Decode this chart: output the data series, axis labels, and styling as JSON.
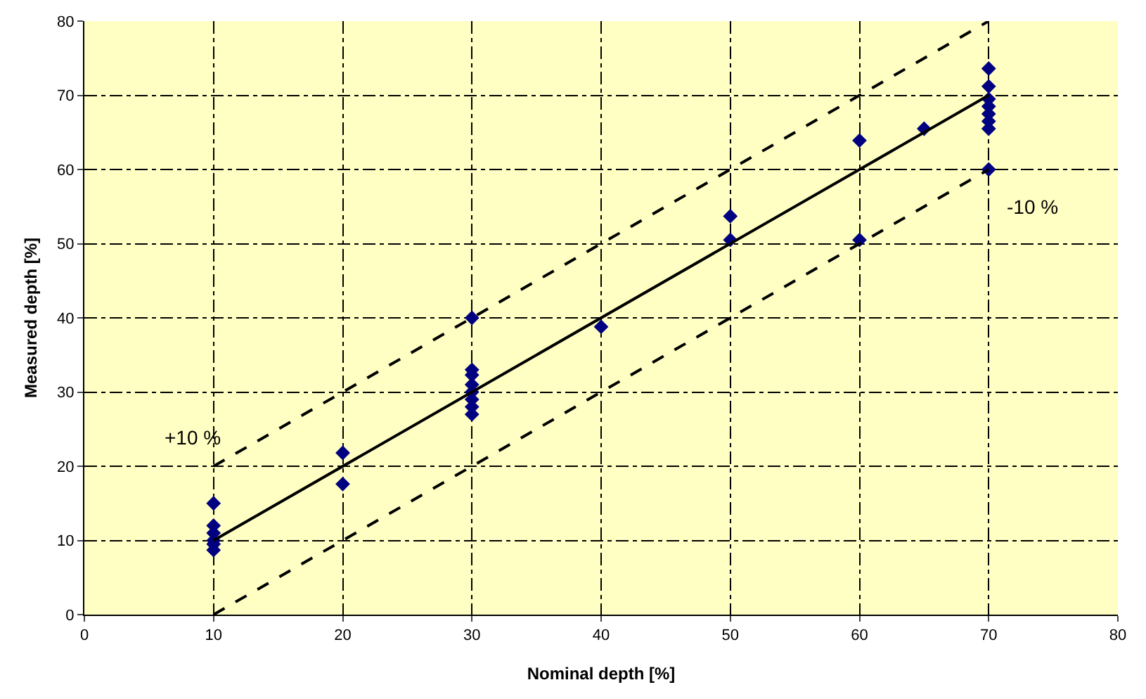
{
  "chart_data": {
    "type": "scatter",
    "xlabel": "Nominal depth [%]",
    "ylabel": "Measured depth [%]",
    "xlim": [
      0,
      80
    ],
    "xticks": [
      0,
      10,
      20,
      30,
      40,
      50,
      60,
      70,
      80
    ],
    "ylim": [
      0,
      80
    ],
    "yticks": [
      0,
      10,
      20,
      30,
      40,
      50,
      60,
      70,
      80
    ],
    "grid": true,
    "series": [
      {
        "marker": "diamond",
        "color": "#000080",
        "x": [
          10,
          10,
          10,
          10,
          10,
          10,
          20,
          20,
          30,
          30,
          30,
          30,
          30,
          30,
          30,
          30,
          40,
          50,
          50,
          60,
          60,
          65,
          70,
          70,
          70,
          70,
          70,
          70,
          70,
          70
        ],
        "values": [
          15,
          12,
          11,
          10,
          9.5,
          8.7,
          21.8,
          17.6,
          40,
          33,
          32.3,
          31,
          30,
          29,
          28,
          27,
          38.8,
          53.7,
          50.5,
          63.9,
          50.5,
          65.5,
          73.6,
          71.2,
          69.5,
          68.5,
          67.5,
          66.5,
          65.5,
          60
        ]
      },
      {
        "type": "line",
        "marker": "none",
        "color": "#000000",
        "line_style": "solid",
        "x": [
          10,
          70
        ],
        "values": [
          10,
          70
        ]
      },
      {
        "type": "line",
        "marker": "none",
        "color": "#000000",
        "line_style": "dashed",
        "x": [
          10,
          70
        ],
        "values": [
          20,
          80
        ]
      },
      {
        "type": "line",
        "marker": "none",
        "color": "#000000",
        "line_style": "dashed",
        "x": [
          10,
          70
        ],
        "values": [
          0,
          60
        ]
      }
    ],
    "annotations": [
      "+10 %",
      "-10 %"
    ]
  }
}
